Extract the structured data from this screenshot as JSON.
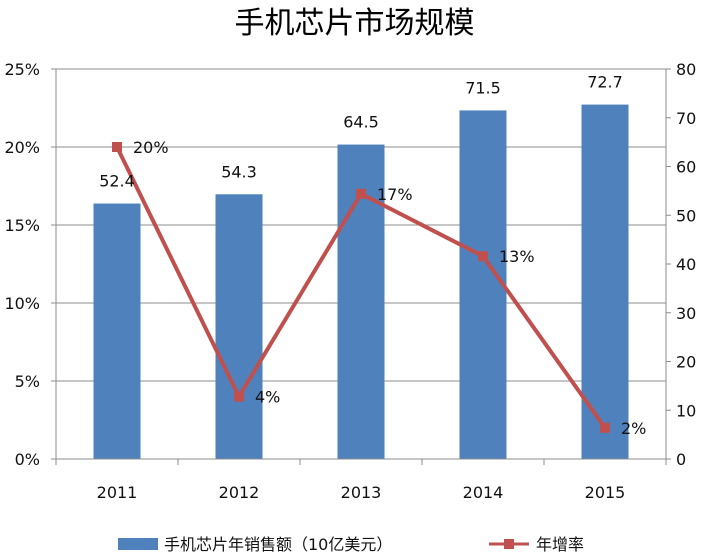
{
  "chart_data": {
    "type": "bar",
    "title": "手机芯片市场规模",
    "categories": [
      "2011",
      "2012",
      "2013",
      "2014",
      "2015"
    ],
    "series": [
      {
        "name": "手机芯片年销售额（10亿美元）",
        "type": "bar",
        "axis": "right",
        "values": [
          52.4,
          54.3,
          64.5,
          71.5,
          72.7
        ],
        "labels": [
          "52.4",
          "54.3",
          "64.5",
          "71.5",
          "72.7"
        ],
        "color": "#4F81BD"
      },
      {
        "name": "年增率",
        "type": "line",
        "axis": "left",
        "values": [
          20,
          4,
          17,
          13,
          2
        ],
        "labels": [
          "20%",
          "4%",
          "17%",
          "13%",
          "2%"
        ],
        "color": "#C0504D"
      }
    ],
    "left_axis": {
      "ylim": [
        0,
        25
      ],
      "ticks": [
        "0%",
        "5%",
        "10%",
        "15%",
        "20%",
        "25%"
      ]
    },
    "right_axis": {
      "ylim": [
        0,
        80
      ],
      "ticks": [
        "0",
        "10",
        "20",
        "30",
        "40",
        "50",
        "60",
        "70",
        "80"
      ]
    },
    "legend": {
      "placement": "bottom"
    },
    "grid": {
      "horizontal": true,
      "color": "#8C8C8C"
    }
  }
}
